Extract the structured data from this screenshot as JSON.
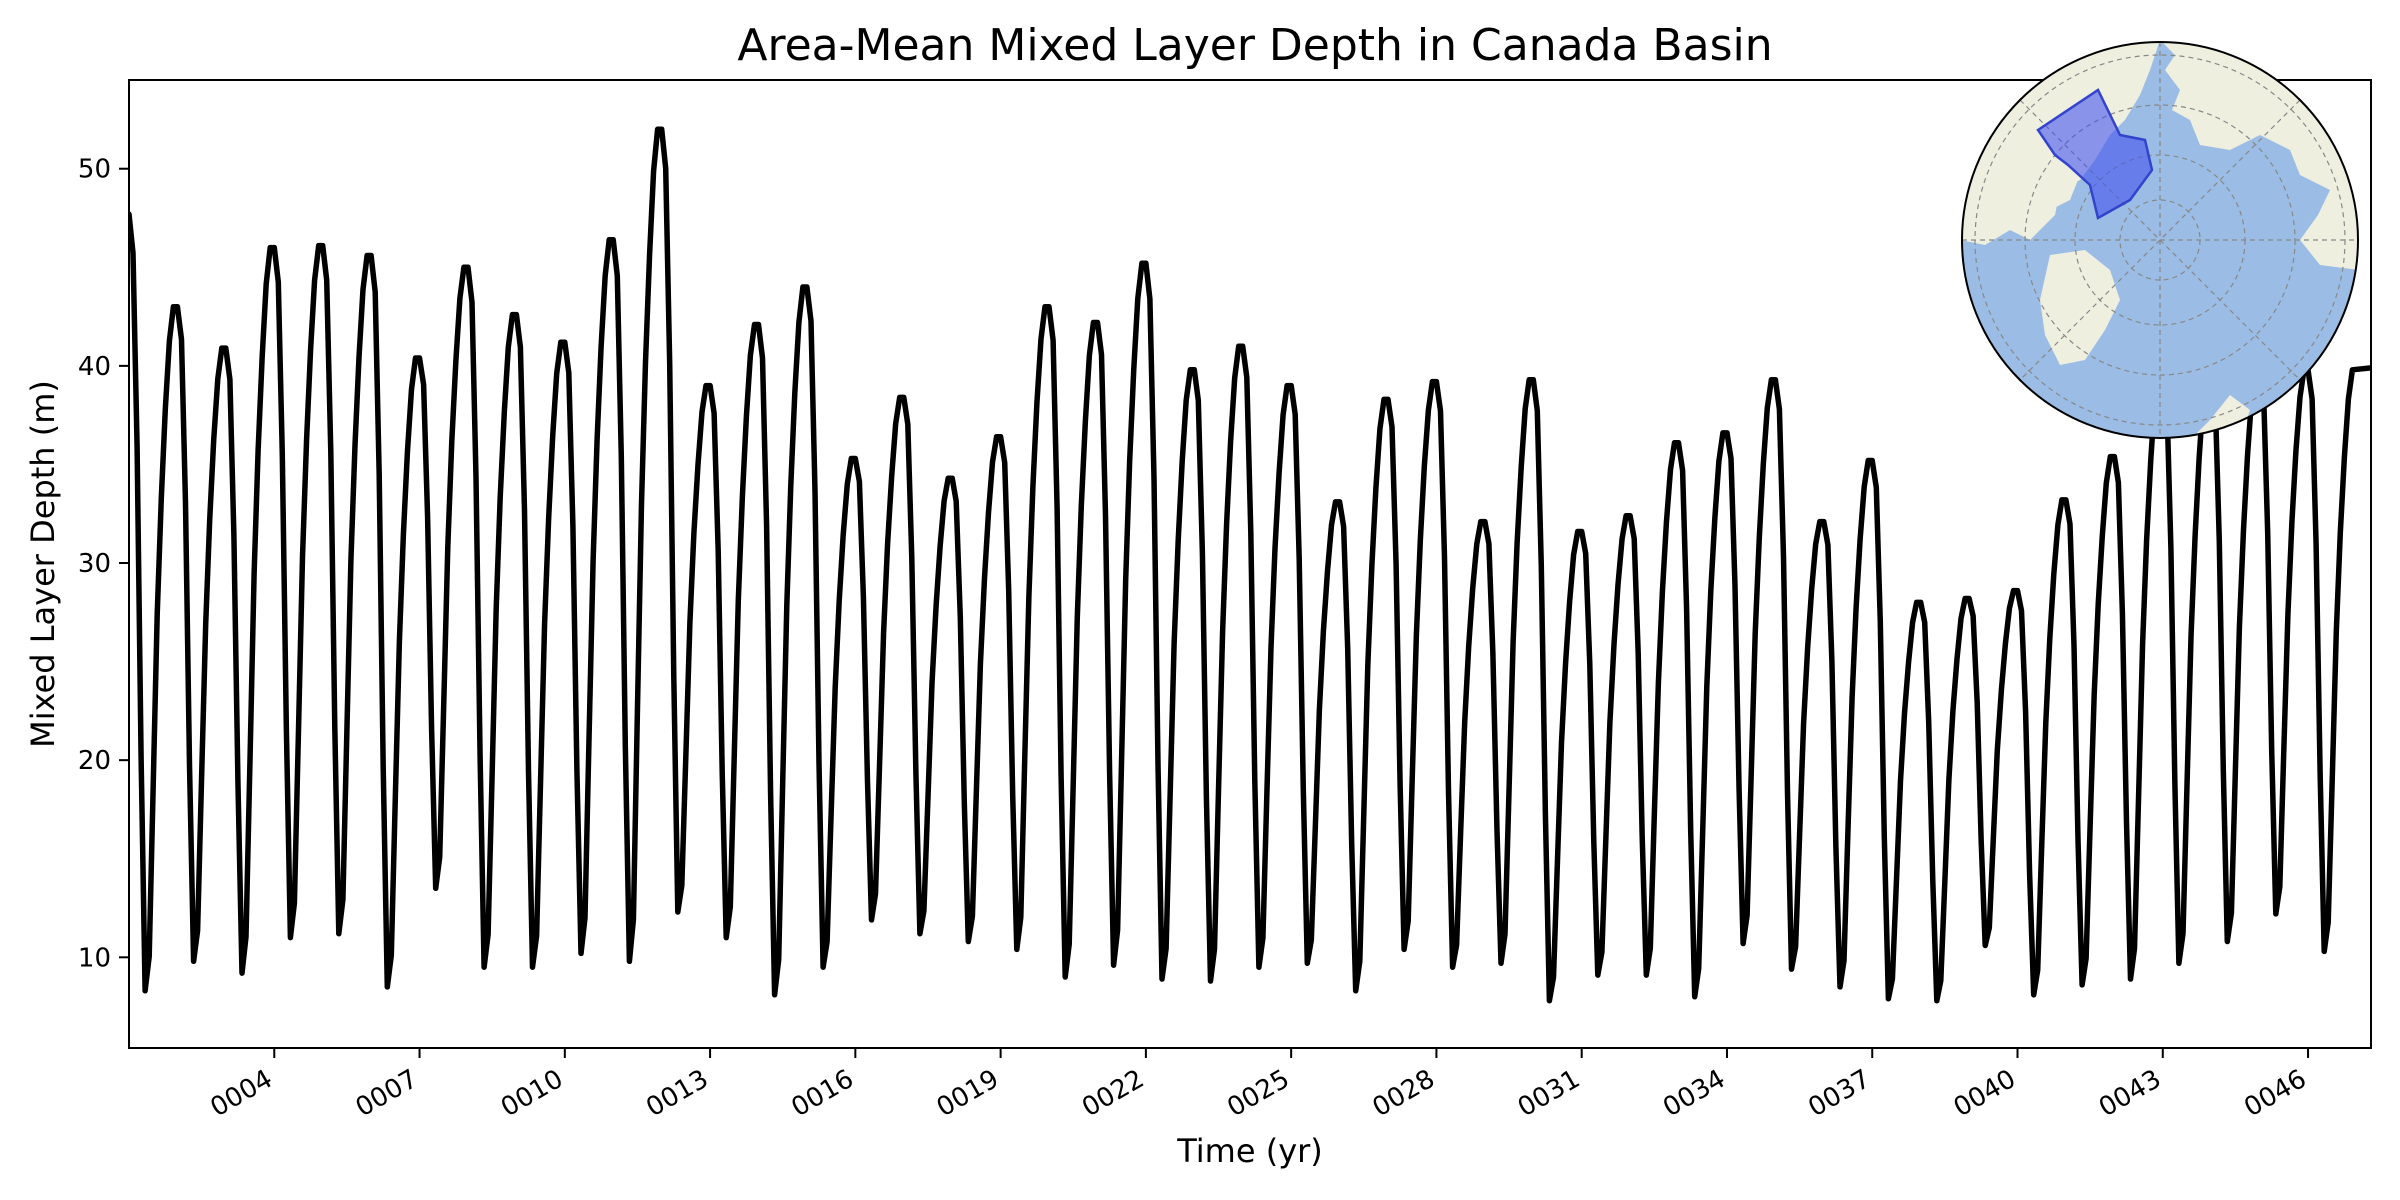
{
  "chart_data": {
    "type": "line",
    "title": "Area-Mean Mixed Layer Depth in Canada Basin",
    "xlabel": "Time (yr)",
    "ylabel": "Mixed Layer Depth (m)",
    "xlim": [
      1.0,
      47.3
    ],
    "ylim": [
      5.4,
      54.5
    ],
    "xticks": [
      4,
      7,
      10,
      13,
      16,
      19,
      22,
      25,
      28,
      31,
      34,
      37,
      40,
      43,
      46
    ],
    "xtick_labels": [
      "0004",
      "0007",
      "0010",
      "0013",
      "0016",
      "0019",
      "0022",
      "0025",
      "0028",
      "0031",
      "0034",
      "0037",
      "0040",
      "0043",
      "0046"
    ],
    "yticks": [
      10,
      20,
      30,
      40,
      50
    ],
    "ytick_labels": [
      "10",
      "20",
      "30",
      "40",
      "50"
    ],
    "grid": false,
    "line_color": "#000000",
    "series": [
      {
        "x_start": 1.0,
        "x_step": 0.1,
        "winter_peaks": [
          47.7,
          43.0,
          40.9,
          46.0,
          46.1,
          45.6,
          40.4,
          45.0,
          42.6,
          41.2,
          46.4,
          52.0,
          39.0,
          42.1,
          44.0,
          35.3,
          38.4,
          34.3,
          36.4,
          43.0,
          42.2,
          45.2,
          39.8,
          41.0,
          39.0,
          33.1,
          38.3,
          39.2,
          32.1,
          39.3,
          31.6,
          32.4,
          36.1,
          36.6,
          39.3,
          32.1,
          35.2,
          28.0,
          28.2,
          28.6,
          33.2,
          35.4,
          39.8
        ],
        "summer_minima": [
          8.3,
          9.8,
          9.2,
          11.0,
          11.2,
          8.5,
          13.5,
          9.5,
          9.5,
          10.2,
          9.8,
          12.3,
          11.0,
          8.1,
          9.5,
          11.9,
          11.2,
          10.8,
          10.4,
          9.0,
          9.6,
          8.9,
          8.8,
          9.5,
          9.7,
          8.3,
          10.4,
          9.5,
          9.7,
          7.8,
          9.1,
          9.1,
          8.0,
          10.7,
          9.4,
          8.5,
          7.9,
          7.8,
          10.6,
          8.1,
          8.6,
          8.9,
          9.7,
          10.8,
          12.2,
          10.3
        ],
        "end_value": 39.9
      }
    ],
    "inset_map": {
      "projection": "north polar stereographic",
      "land_color": "#efefe0",
      "ocean_color": "#9bbce4",
      "region_fill": "#4455ee",
      "region_edge": "#3344cc"
    }
  }
}
